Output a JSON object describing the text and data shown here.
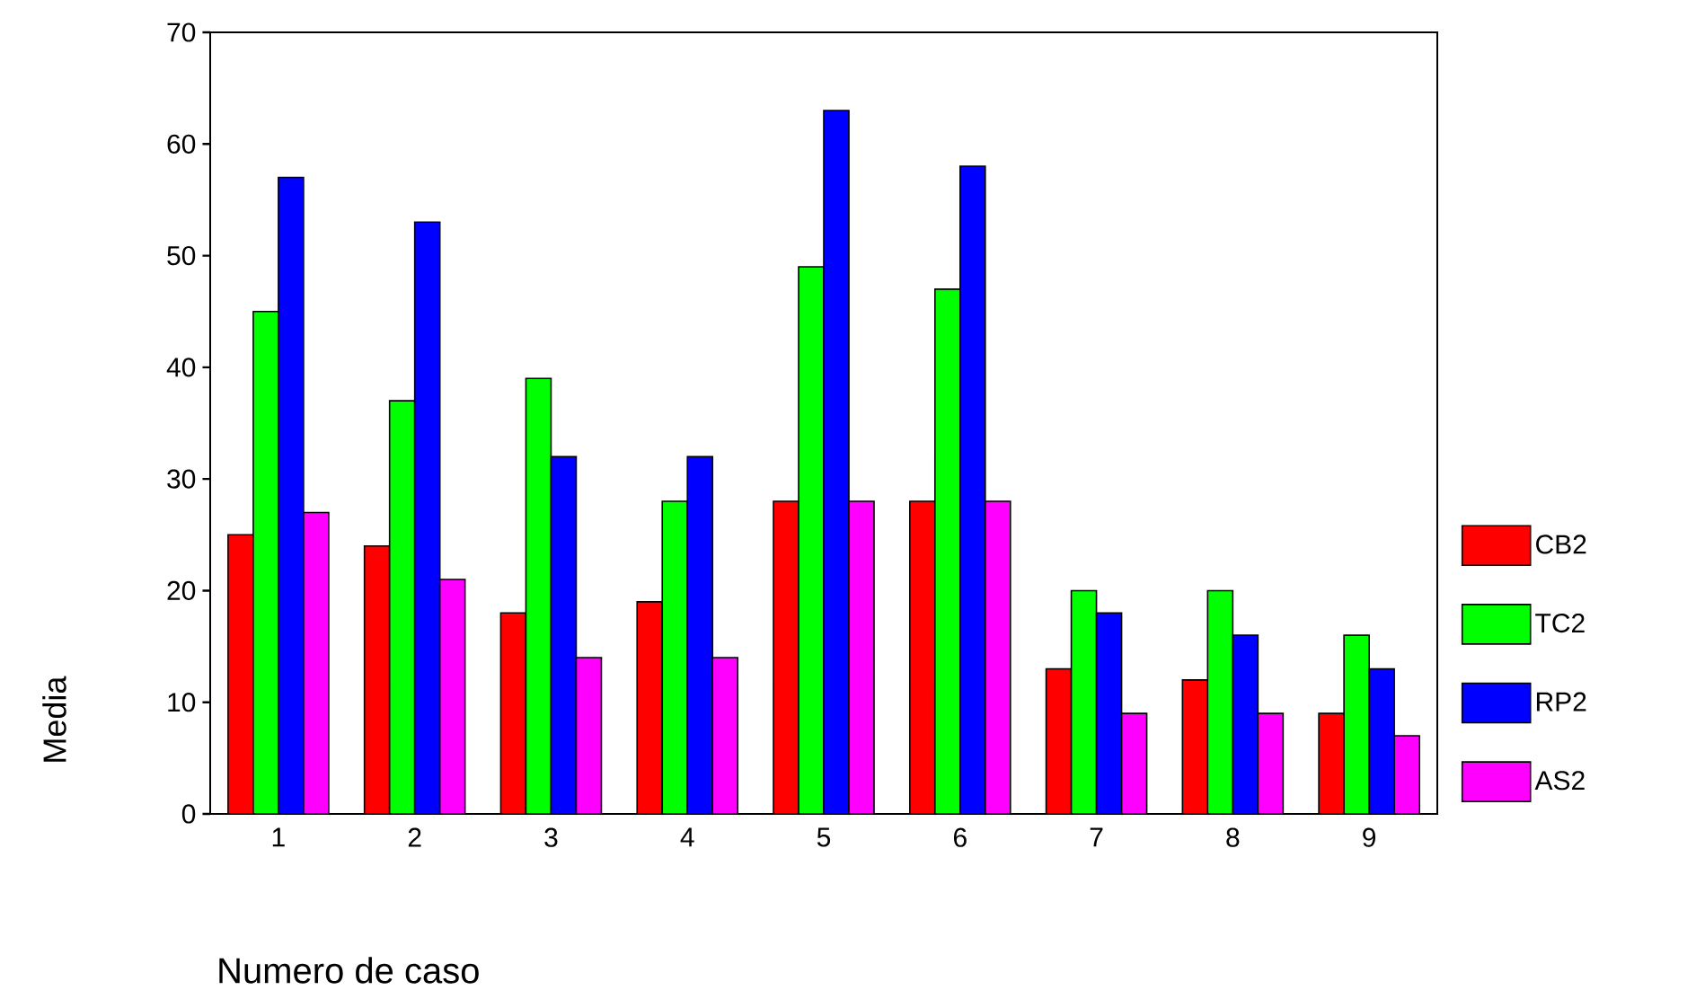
{
  "chart_data": {
    "type": "bar",
    "xlabel": "Numero de caso",
    "ylabel": "Media",
    "categories": [
      "1",
      "2",
      "3",
      "4",
      "5",
      "6",
      "7",
      "8",
      "9"
    ],
    "series": [
      {
        "name": "CB2",
        "color": "#ff0000",
        "values": [
          25,
          24,
          18,
          19,
          28,
          28,
          13,
          12,
          9
        ]
      },
      {
        "name": "TC2",
        "color": "#00ff00",
        "values": [
          45,
          37,
          39,
          28,
          49,
          47,
          20,
          20,
          16
        ]
      },
      {
        "name": "RP2",
        "color": "#0000ff",
        "values": [
          57,
          53,
          32,
          32,
          63,
          58,
          18,
          16,
          13
        ]
      },
      {
        "name": "AS2",
        "color": "#ff00ff",
        "values": [
          27,
          21,
          14,
          14,
          28,
          28,
          9,
          9,
          7
        ]
      }
    ],
    "ylim": [
      0,
      70
    ],
    "yticks": [
      0,
      10,
      20,
      30,
      40,
      50,
      60,
      70
    ],
    "legend": "right",
    "grid": false
  }
}
